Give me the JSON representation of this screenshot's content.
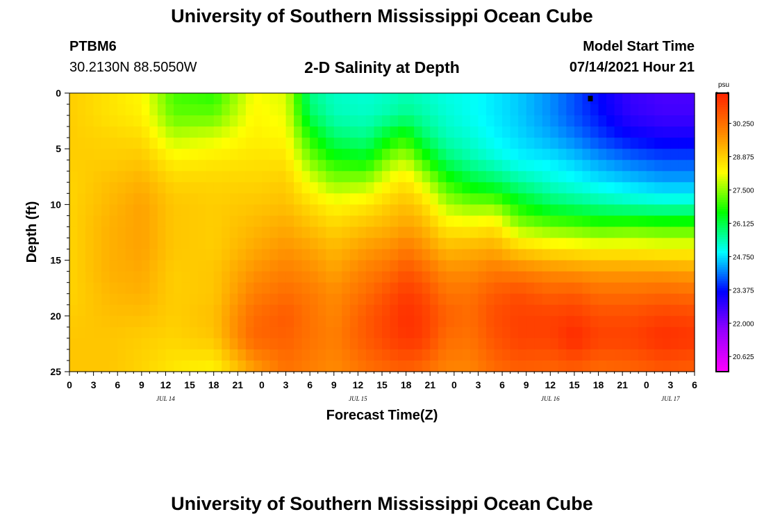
{
  "header": {
    "title": "University of Southern Mississippi Ocean Cube",
    "station": "PTBM6",
    "coords": "30.2130N  88.5050W",
    "plot_title": "2-D Salinity at Depth",
    "model_label": "Model Start Time",
    "model_time": "07/14/2021 Hour 21"
  },
  "footer": {
    "title": "University of Southern Mississippi Ocean Cube"
  },
  "chart_data": {
    "type": "heatmap",
    "title": "2-D Salinity at Depth",
    "xlabel": "Forecast Time(Z)",
    "ylabel": "Depth (ft)",
    "units": "psu",
    "x_tick_labels": [
      "0",
      "3",
      "6",
      "9",
      "12",
      "15",
      "18",
      "21",
      "0",
      "3",
      "6",
      "9",
      "12",
      "15",
      "18",
      "21",
      "0",
      "3",
      "6",
      "9",
      "12",
      "15",
      "18",
      "21",
      "0",
      "3",
      "6"
    ],
    "x_date_labels": [
      "JUL 14",
      "JUL 15",
      "JUL 16",
      "JUL 17"
    ],
    "x_range_hours": [
      0,
      78
    ],
    "ylim": [
      0,
      25
    ],
    "y_ticks": [
      0,
      5,
      10,
      15,
      20,
      25
    ],
    "y_tick_labels": [
      "0",
      "5",
      "10",
      "15",
      "20",
      "25"
    ],
    "colorbar": {
      "ticks": [
        30.25,
        28.875,
        27.5,
        26.125,
        24.75,
        23.375,
        22.0,
        20.625
      ],
      "tick_labels": [
        "30.250",
        "28.875",
        "27.500",
        "26.125",
        "24.750",
        "23.375",
        "22.000",
        "20.625"
      ],
      "range": [
        20.0,
        31.5
      ],
      "colors": [
        "#ff00ff",
        "#9900ff",
        "#0000ff",
        "#00ffff",
        "#00ff00",
        "#ffff00",
        "#ff8800",
        "#ff2200"
      ]
    },
    "profiles": {
      "depths": [
        0,
        2,
        4,
        6,
        8,
        10,
        12,
        14,
        16,
        18,
        20,
        22,
        25
      ],
      "columns": [
        {
          "t": 0,
          "v": [
            28.9,
            28.9,
            28.9,
            28.9,
            28.8,
            28.8,
            28.8,
            28.8,
            28.8,
            28.8,
            28.9,
            29.0,
            29.0
          ]
        },
        {
          "t": 5,
          "v": [
            28.6,
            28.6,
            28.8,
            28.9,
            29.1,
            29.2,
            29.3,
            29.3,
            29.3,
            29.2,
            29.1,
            29.0,
            29.0
          ]
        },
        {
          "t": 9,
          "v": [
            28.3,
            28.4,
            28.7,
            29.0,
            29.3,
            29.5,
            29.5,
            29.5,
            29.4,
            29.3,
            29.1,
            28.9,
            28.8
          ]
        },
        {
          "t": 13,
          "v": [
            27.0,
            27.2,
            27.8,
            28.4,
            28.8,
            29.0,
            29.0,
            29.0,
            28.9,
            28.9,
            28.9,
            28.8,
            28.5
          ]
        },
        {
          "t": 18,
          "v": [
            26.8,
            27.2,
            28.0,
            28.5,
            28.8,
            28.9,
            28.9,
            28.9,
            29.0,
            29.0,
            29.1,
            29.0,
            28.3
          ]
        },
        {
          "t": 23,
          "v": [
            28.2,
            28.3,
            28.4,
            28.6,
            28.8,
            29.0,
            29.2,
            29.4,
            29.7,
            30.0,
            30.3,
            30.4,
            29.5
          ]
        },
        {
          "t": 27,
          "v": [
            28.0,
            28.1,
            28.3,
            28.6,
            28.9,
            29.1,
            29.4,
            29.7,
            30.0,
            30.3,
            30.6,
            30.5,
            30.2
          ]
        },
        {
          "t": 30,
          "v": [
            25.7,
            26.0,
            26.8,
            27.4,
            28.1,
            28.7,
            29.1,
            29.5,
            29.8,
            30.1,
            30.2,
            30.2,
            30.0
          ]
        },
        {
          "t": 33,
          "v": [
            25.3,
            25.4,
            25.9,
            26.7,
            27.5,
            28.3,
            28.8,
            29.2,
            29.5,
            29.8,
            29.9,
            30.0,
            29.8
          ]
        },
        {
          "t": 37,
          "v": [
            25.2,
            25.3,
            25.7,
            26.5,
            27.6,
            28.5,
            29.1,
            29.6,
            30.0,
            30.3,
            30.6,
            30.6,
            30.2
          ]
        },
        {
          "t": 40,
          "v": [
            25.3,
            25.5,
            26.5,
            27.5,
            28.3,
            28.9,
            29.3,
            29.8,
            30.3,
            30.8,
            31.0,
            31.0,
            30.4
          ]
        },
        {
          "t": 42,
          "v": [
            25.4,
            25.7,
            26.8,
            27.8,
            28.6,
            29.1,
            29.5,
            30.1,
            30.7,
            31.1,
            31.3,
            31.2,
            30.5
          ]
        },
        {
          "t": 44,
          "v": [
            25.3,
            25.5,
            26.0,
            27.0,
            28.0,
            28.8,
            29.3,
            29.8,
            30.4,
            30.9,
            31.1,
            31.1,
            30.3
          ]
        },
        {
          "t": 47,
          "v": [
            25.1,
            25.2,
            25.4,
            25.9,
            26.9,
            27.7,
            28.5,
            29.2,
            29.8,
            30.2,
            30.5,
            30.3,
            29.9
          ]
        },
        {
          "t": 50,
          "v": [
            25.0,
            25.0,
            25.2,
            25.5,
            26.3,
            27.4,
            28.4,
            29.3,
            29.8,
            30.2,
            30.3,
            30.2,
            29.9
          ]
        },
        {
          "t": 53,
          "v": [
            24.8,
            24.8,
            24.9,
            25.2,
            26.0,
            27.4,
            28.6,
            29.4,
            30.1,
            30.6,
            30.8,
            30.7,
            30.3
          ]
        },
        {
          "t": 56,
          "v": [
            24.6,
            24.6,
            24.7,
            24.9,
            25.6,
            26.6,
            27.6,
            28.9,
            30.0,
            30.8,
            31.0,
            31.0,
            30.5
          ]
        },
        {
          "t": 60,
          "v": [
            24.2,
            24.2,
            24.4,
            24.8,
            25.2,
            26.0,
            27.3,
            28.6,
            29.8,
            30.5,
            31.0,
            31.0,
            30.4
          ]
        },
        {
          "t": 63,
          "v": [
            23.8,
            23.8,
            24.1,
            24.6,
            25.0,
            25.8,
            27.2,
            28.5,
            29.7,
            30.6,
            31.1,
            31.4,
            30.5
          ]
        },
        {
          "t": 66,
          "v": [
            23.3,
            23.4,
            23.7,
            24.3,
            24.8,
            25.6,
            27.0,
            28.4,
            29.6,
            30.3,
            30.8,
            31.0,
            30.3
          ]
        },
        {
          "t": 70,
          "v": [
            22.7,
            22.8,
            23.3,
            24.0,
            24.6,
            25.4,
            27.1,
            28.4,
            29.6,
            30.3,
            30.8,
            31.0,
            30.4
          ]
        },
        {
          "t": 74,
          "v": [
            22.5,
            22.6,
            23.1,
            23.8,
            24.4,
            25.3,
            27.0,
            28.3,
            29.6,
            30.4,
            31.0,
            31.3,
            30.6
          ]
        },
        {
          "t": 78,
          "v": [
            22.5,
            22.6,
            23.1,
            23.8,
            24.4,
            25.3,
            27.0,
            28.3,
            29.5,
            30.3,
            30.9,
            31.2,
            30.5
          ]
        }
      ]
    },
    "grid": false,
    "marker": {
      "t": 65,
      "depth": 0.3
    }
  }
}
